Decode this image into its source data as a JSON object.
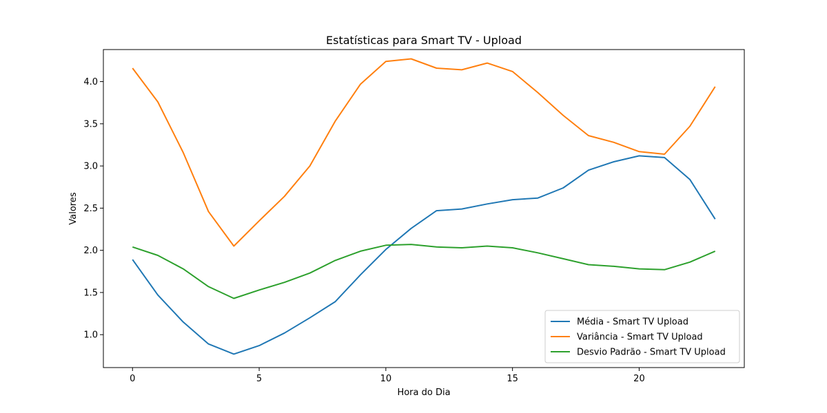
{
  "chart_data": {
    "type": "line",
    "title": "Estatísticas para Smart TV - Upload",
    "xlabel": "Hora do Dia",
    "ylabel": "Valores",
    "xlim": [
      -1.15,
      24.15
    ],
    "ylim": [
      0.61,
      4.38
    ],
    "xticks": [
      0,
      5,
      10,
      15,
      20
    ],
    "yticks": [
      1.0,
      1.5,
      2.0,
      2.5,
      3.0,
      3.5,
      4.0
    ],
    "ytick_labels": [
      "1.0",
      "1.5",
      "2.0",
      "2.5",
      "3.0",
      "3.5",
      "4.0"
    ],
    "grid": false,
    "legend_position": "lower right",
    "x": [
      0,
      1,
      2,
      3,
      4,
      5,
      6,
      7,
      8,
      9,
      10,
      11,
      12,
      13,
      14,
      15,
      16,
      17,
      18,
      19,
      20,
      21,
      22,
      23
    ],
    "series": [
      {
        "name": "Média - Smart TV Upload",
        "color": "#1f77b4",
        "values": [
          1.89,
          1.47,
          1.15,
          0.89,
          0.77,
          0.87,
          1.02,
          1.2,
          1.39,
          1.71,
          2.01,
          2.26,
          2.47,
          2.49,
          2.55,
          2.6,
          2.62,
          2.74,
          2.95,
          3.05,
          3.12,
          3.1,
          2.84,
          2.37
        ]
      },
      {
        "name": "Variância - Smart TV Upload",
        "color": "#ff7f0e",
        "values": [
          4.16,
          3.76,
          3.16,
          2.46,
          2.05,
          2.35,
          2.64,
          3.0,
          3.53,
          3.97,
          4.24,
          4.27,
          4.16,
          4.14,
          4.22,
          4.12,
          3.87,
          3.6,
          3.36,
          3.28,
          3.17,
          3.14,
          3.47,
          3.94
        ]
      },
      {
        "name": "Desvio Padrão - Smart TV Upload",
        "color": "#2ca02c",
        "values": [
          2.04,
          1.94,
          1.78,
          1.57,
          1.43,
          1.53,
          1.62,
          1.73,
          1.88,
          1.99,
          2.06,
          2.07,
          2.04,
          2.03,
          2.05,
          2.03,
          1.97,
          1.9,
          1.83,
          1.81,
          1.78,
          1.77,
          1.86,
          1.99
        ]
      }
    ]
  }
}
